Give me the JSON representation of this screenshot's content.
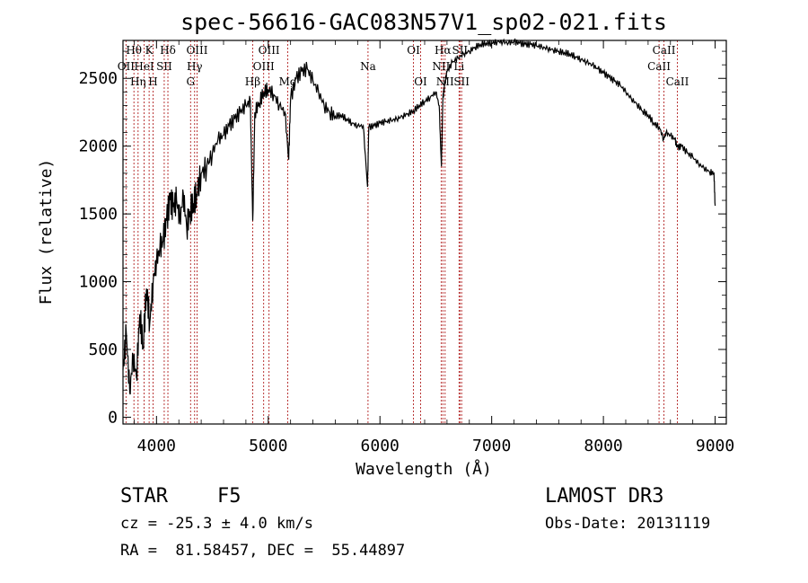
{
  "chart_data": {
    "type": "line",
    "title": "spec-56616-GAC083N57V1_sp02-021.fits",
    "xlabel": "Wavelength (Å)",
    "ylabel": "Flux (relative)",
    "xlim": [
      3700,
      9100
    ],
    "ylim": [
      -50,
      2780
    ],
    "xticks": [
      4000,
      5000,
      6000,
      7000,
      8000,
      9000
    ],
    "yticks": [
      0,
      500,
      1000,
      1500,
      2000,
      2500
    ],
    "series": [
      {
        "name": "spectrum",
        "x": [
          3700,
          3730,
          3760,
          3790,
          3820,
          3850,
          3880,
          3910,
          3940,
          3970,
          4000,
          4030,
          4060,
          4090,
          4120,
          4150,
          4180,
          4210,
          4240,
          4270,
          4300,
          4330,
          4360,
          4400,
          4450,
          4500,
          4550,
          4600,
          4650,
          4700,
          4750,
          4800,
          4840,
          4861,
          4880,
          4920,
          4960,
          5000,
          5050,
          5100,
          5150,
          5183,
          5200,
          5250,
          5300,
          5350,
          5400,
          5450,
          5500,
          5550,
          5600,
          5650,
          5700,
          5750,
          5800,
          5850,
          5889,
          5900,
          5950,
          6000,
          6050,
          6100,
          6150,
          6200,
          6250,
          6300,
          6350,
          6400,
          6450,
          6500,
          6530,
          6550,
          6563,
          6580,
          6600,
          6650,
          6700,
          6750,
          6800,
          6850,
          6900,
          6950,
          7000,
          7050,
          7100,
          7150,
          7200,
          7250,
          7300,
          7350,
          7400,
          7450,
          7500,
          7550,
          7600,
          7650,
          7700,
          7750,
          7800,
          7850,
          7900,
          7950,
          8000,
          8050,
          8100,
          8150,
          8200,
          8250,
          8300,
          8350,
          8400,
          8450,
          8500,
          8540,
          8560,
          8600,
          8640,
          8662,
          8700,
          8750,
          8800,
          8850,
          8900,
          8950,
          8990,
          9000
        ],
        "y": [
          350,
          620,
          180,
          450,
          300,
          760,
          520,
          950,
          700,
          1000,
          1150,
          1250,
          1300,
          1450,
          1600,
          1550,
          1600,
          1450,
          1650,
          1400,
          1520,
          1580,
          1650,
          1800,
          1850,
          1950,
          2050,
          2080,
          2150,
          2200,
          2250,
          2300,
          2330,
          1450,
          2250,
          2320,
          2400,
          2420,
          2380,
          2300,
          2250,
          1900,
          2350,
          2500,
          2550,
          2570,
          2480,
          2400,
          2300,
          2250,
          2220,
          2230,
          2200,
          2170,
          2150,
          2150,
          1700,
          2140,
          2150,
          2170,
          2180,
          2190,
          2200,
          2220,
          2240,
          2260,
          2300,
          2330,
          2360,
          2400,
          2300,
          1850,
          2350,
          2450,
          2550,
          2620,
          2650,
          2680,
          2700,
          2730,
          2750,
          2760,
          2760,
          2770,
          2770,
          2760,
          2770,
          2760,
          2750,
          2750,
          2740,
          2730,
          2720,
          2710,
          2700,
          2690,
          2680,
          2660,
          2640,
          2620,
          2600,
          2570,
          2540,
          2510,
          2480,
          2450,
          2400,
          2350,
          2310,
          2260,
          2230,
          2170,
          2140,
          2050,
          2100,
          2080,
          2050,
          1990,
          2000,
          1950,
          1920,
          1870,
          1840,
          1810,
          1800,
          1560
        ]
      }
    ],
    "spectral_lines": [
      {
        "label": "Hθ",
        "wave": 3798,
        "row": 0
      },
      {
        "label": "OII",
        "wave": 3727,
        "row": 1
      },
      {
        "label": "Hη",
        "wave": 3835,
        "row": 2
      },
      {
        "label": "K",
        "wave": 3934,
        "row": 0
      },
      {
        "label": "HeI",
        "wave": 3889,
        "row": 1
      },
      {
        "label": "H",
        "wave": 3969,
        "row": 2
      },
      {
        "label": "Hδ",
        "wave": 4102,
        "row": 0
      },
      {
        "label": "SII",
        "wave": 4069,
        "row": 1
      },
      {
        "label": "OIII",
        "wave": 4363,
        "row": 0
      },
      {
        "label": "Hγ",
        "wave": 4341,
        "row": 1
      },
      {
        "label": "G",
        "wave": 4305,
        "row": 2
      },
      {
        "label": "Hβ",
        "wave": 4861,
        "row": 2
      },
      {
        "label": "OIII",
        "wave": 5007,
        "row": 0
      },
      {
        "label": "OIII",
        "wave": 4959,
        "row": 1
      },
      {
        "label": "Mg",
        "wave": 5175,
        "row": 2
      },
      {
        "label": "Na",
        "wave": 5893,
        "row": 1
      },
      {
        "label": "OI",
        "wave": 6300,
        "row": 0
      },
      {
        "label": "OI",
        "wave": 6364,
        "row": 2
      },
      {
        "label": "Hα",
        "wave": 6563,
        "row": 0
      },
      {
        "label": "SII",
        "wave": 6716,
        "row": 0
      },
      {
        "label": "NII",
        "wave": 6548,
        "row": 1
      },
      {
        "label": "Li",
        "wave": 6708,
        "row": 1
      },
      {
        "label": "NII",
        "wave": 6583,
        "row": 2
      },
      {
        "label": "SII",
        "wave": 6731,
        "row": 2
      },
      {
        "label": "CaII",
        "wave": 8542,
        "row": 0
      },
      {
        "label": "CaII",
        "wave": 8498,
        "row": 1
      },
      {
        "label": "CaII",
        "wave": 8662,
        "row": 2
      }
    ]
  },
  "footer": {
    "object_type": "STAR",
    "subclass": "F5",
    "survey": "LAMOST DR3",
    "redshift": "cz = -25.3 ± 4.0 km/s",
    "obs_date": "Obs-Date: 20131119",
    "coords": "RA =  81.58457, DEC =  55.44897"
  },
  "colors": {
    "spectrum": "#000000",
    "line_marker": "#b22222"
  }
}
